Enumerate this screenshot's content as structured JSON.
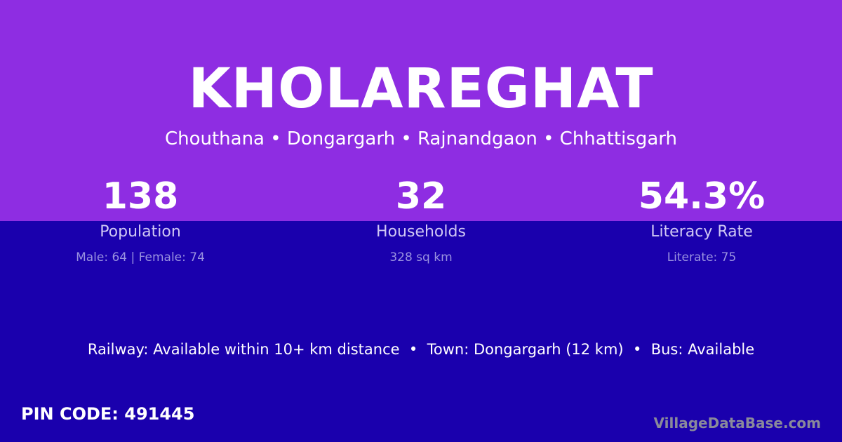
{
  "village": "KHOLAREGHAT",
  "location": "Chouthana • Dongargarh • Rajnandgaon • Chhattisgarh",
  "stats": [
    {
      "value": "138",
      "label": "Population",
      "detail": "Male: 64 | Female: 74"
    },
    {
      "value": "32",
      "label": "Households",
      "detail": "328 sq km"
    },
    {
      "value": "54.3%",
      "label": "Literacy Rate",
      "detail": "Literate: 75"
    }
  ],
  "info": "Railway: Available within 10+ km distance  •  Town: Dongargarh (12 km)  •  Bus: Available",
  "pin": "PIN CODE: 491445",
  "brand": "VillageDataBase.com",
  "colors": {
    "top": "#8e2de2",
    "bottom": "#1a00ad"
  }
}
